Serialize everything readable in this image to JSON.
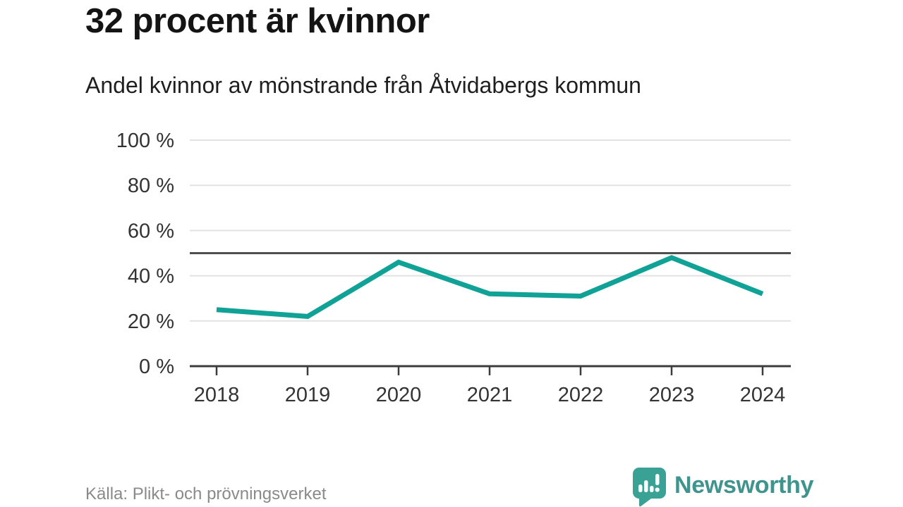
{
  "title": "32 procent är kvinnor",
  "subtitle": "Andel kvinnor av mönstrande från Åtvidabergs kommun",
  "source": "Källa: Plikt- och prövningsverket",
  "brand": {
    "name": "Newsworthy",
    "icon": "newsworthy-speech-bubble-bar-chart-icon"
  },
  "colors": {
    "background": "#ffffff",
    "title_text": "#141414",
    "subtitle_text": "#1f1f1f",
    "axis_text": "#333333",
    "gridline": "#e2e2e2",
    "axis_line": "#3c3c3c",
    "reference_line": "#4f4f4f",
    "line": "#10a296",
    "source_text": "#8a8a8a",
    "brand_teal": "#3f948d",
    "logo_bubble": "#3aa295"
  },
  "chart_data": {
    "type": "line",
    "title": "32 procent är kvinnor",
    "subtitle": "Andel kvinnor av mönstrande från Åtvidabergs kommun",
    "x": [
      "2018",
      "2019",
      "2020",
      "2021",
      "2022",
      "2023",
      "2024"
    ],
    "series": [
      {
        "name": "Andel kvinnor av mönstrande",
        "values": [
          25,
          22,
          46,
          32,
          31,
          48,
          32
        ]
      }
    ],
    "ylim": [
      0,
      100
    ],
    "yticks": [
      0,
      20,
      40,
      60,
      80,
      100
    ],
    "ytick_labels": [
      "0 %",
      "20 %",
      "40 %",
      "60 %",
      "80 %",
      "100 %"
    ],
    "reference_line": 50,
    "grid": true,
    "legend": "none",
    "line_color": "#10a296",
    "xlabel": "",
    "ylabel": ""
  }
}
